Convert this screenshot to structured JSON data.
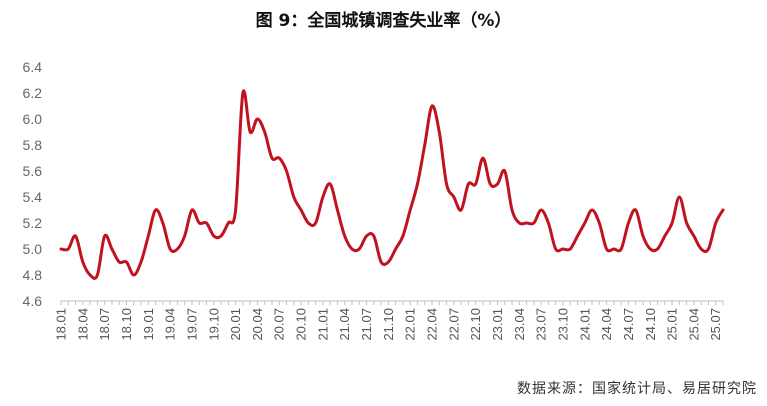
{
  "chart_data": {
    "type": "line",
    "title": "图 9：全国城镇调查失业率（%）",
    "source": "数据来源：国家统计局、易居研究院",
    "xlabel": "",
    "ylabel": "",
    "ylim": [
      4.6,
      6.4
    ],
    "yticks": [
      "4.6",
      "4.8",
      "5.0",
      "5.2",
      "5.4",
      "5.6",
      "5.8",
      "6.0",
      "6.2",
      "6.4"
    ],
    "x_tick_labels": [
      "18.01",
      "18.04",
      "18.07",
      "18.10",
      "19.01",
      "19.04",
      "19.07",
      "19.10",
      "20.01",
      "20.04",
      "20.07",
      "20.10",
      "21.01",
      "21.04",
      "21.07",
      "21.10",
      "22.01",
      "22.04",
      "22.07",
      "22.10",
      "23.01",
      "23.04",
      "23.07",
      "23.10",
      "24.01",
      "24.04",
      "24.07",
      "24.10",
      "25.01",
      "25.04",
      "25.07"
    ],
    "grid": false,
    "color": "#c1121f",
    "series": [
      {
        "values": [
          5.0,
          5.0,
          5.1,
          4.9,
          4.8,
          4.8,
          5.1,
          5.0,
          4.9,
          4.9,
          4.8,
          4.9,
          5.1,
          5.3,
          5.2,
          5.0,
          5.0,
          5.1,
          5.3,
          5.2,
          5.2,
          5.1,
          5.1,
          5.2,
          5.3,
          6.2,
          5.9,
          6.0,
          5.9,
          5.7,
          5.7,
          5.6,
          5.4,
          5.3,
          5.2,
          5.2,
          5.4,
          5.5,
          5.3,
          5.1,
          5.0,
          5.0,
          5.1,
          5.1,
          4.9,
          4.9,
          5.0,
          5.1,
          5.3,
          5.5,
          5.8,
          6.1,
          5.9,
          5.5,
          5.4,
          5.3,
          5.5,
          5.5,
          5.7,
          5.5,
          5.5,
          5.6,
          5.3,
          5.2,
          5.2,
          5.2,
          5.3,
          5.2,
          5.0,
          5.0,
          5.0,
          5.1,
          5.2,
          5.3,
          5.2,
          5.0,
          5.0,
          5.0,
          5.2,
          5.3,
          5.1,
          5.0,
          5.0,
          5.1,
          5.2,
          5.4,
          5.2,
          5.1,
          5.0,
          5.0,
          5.2,
          5.3
        ]
      }
    ]
  }
}
